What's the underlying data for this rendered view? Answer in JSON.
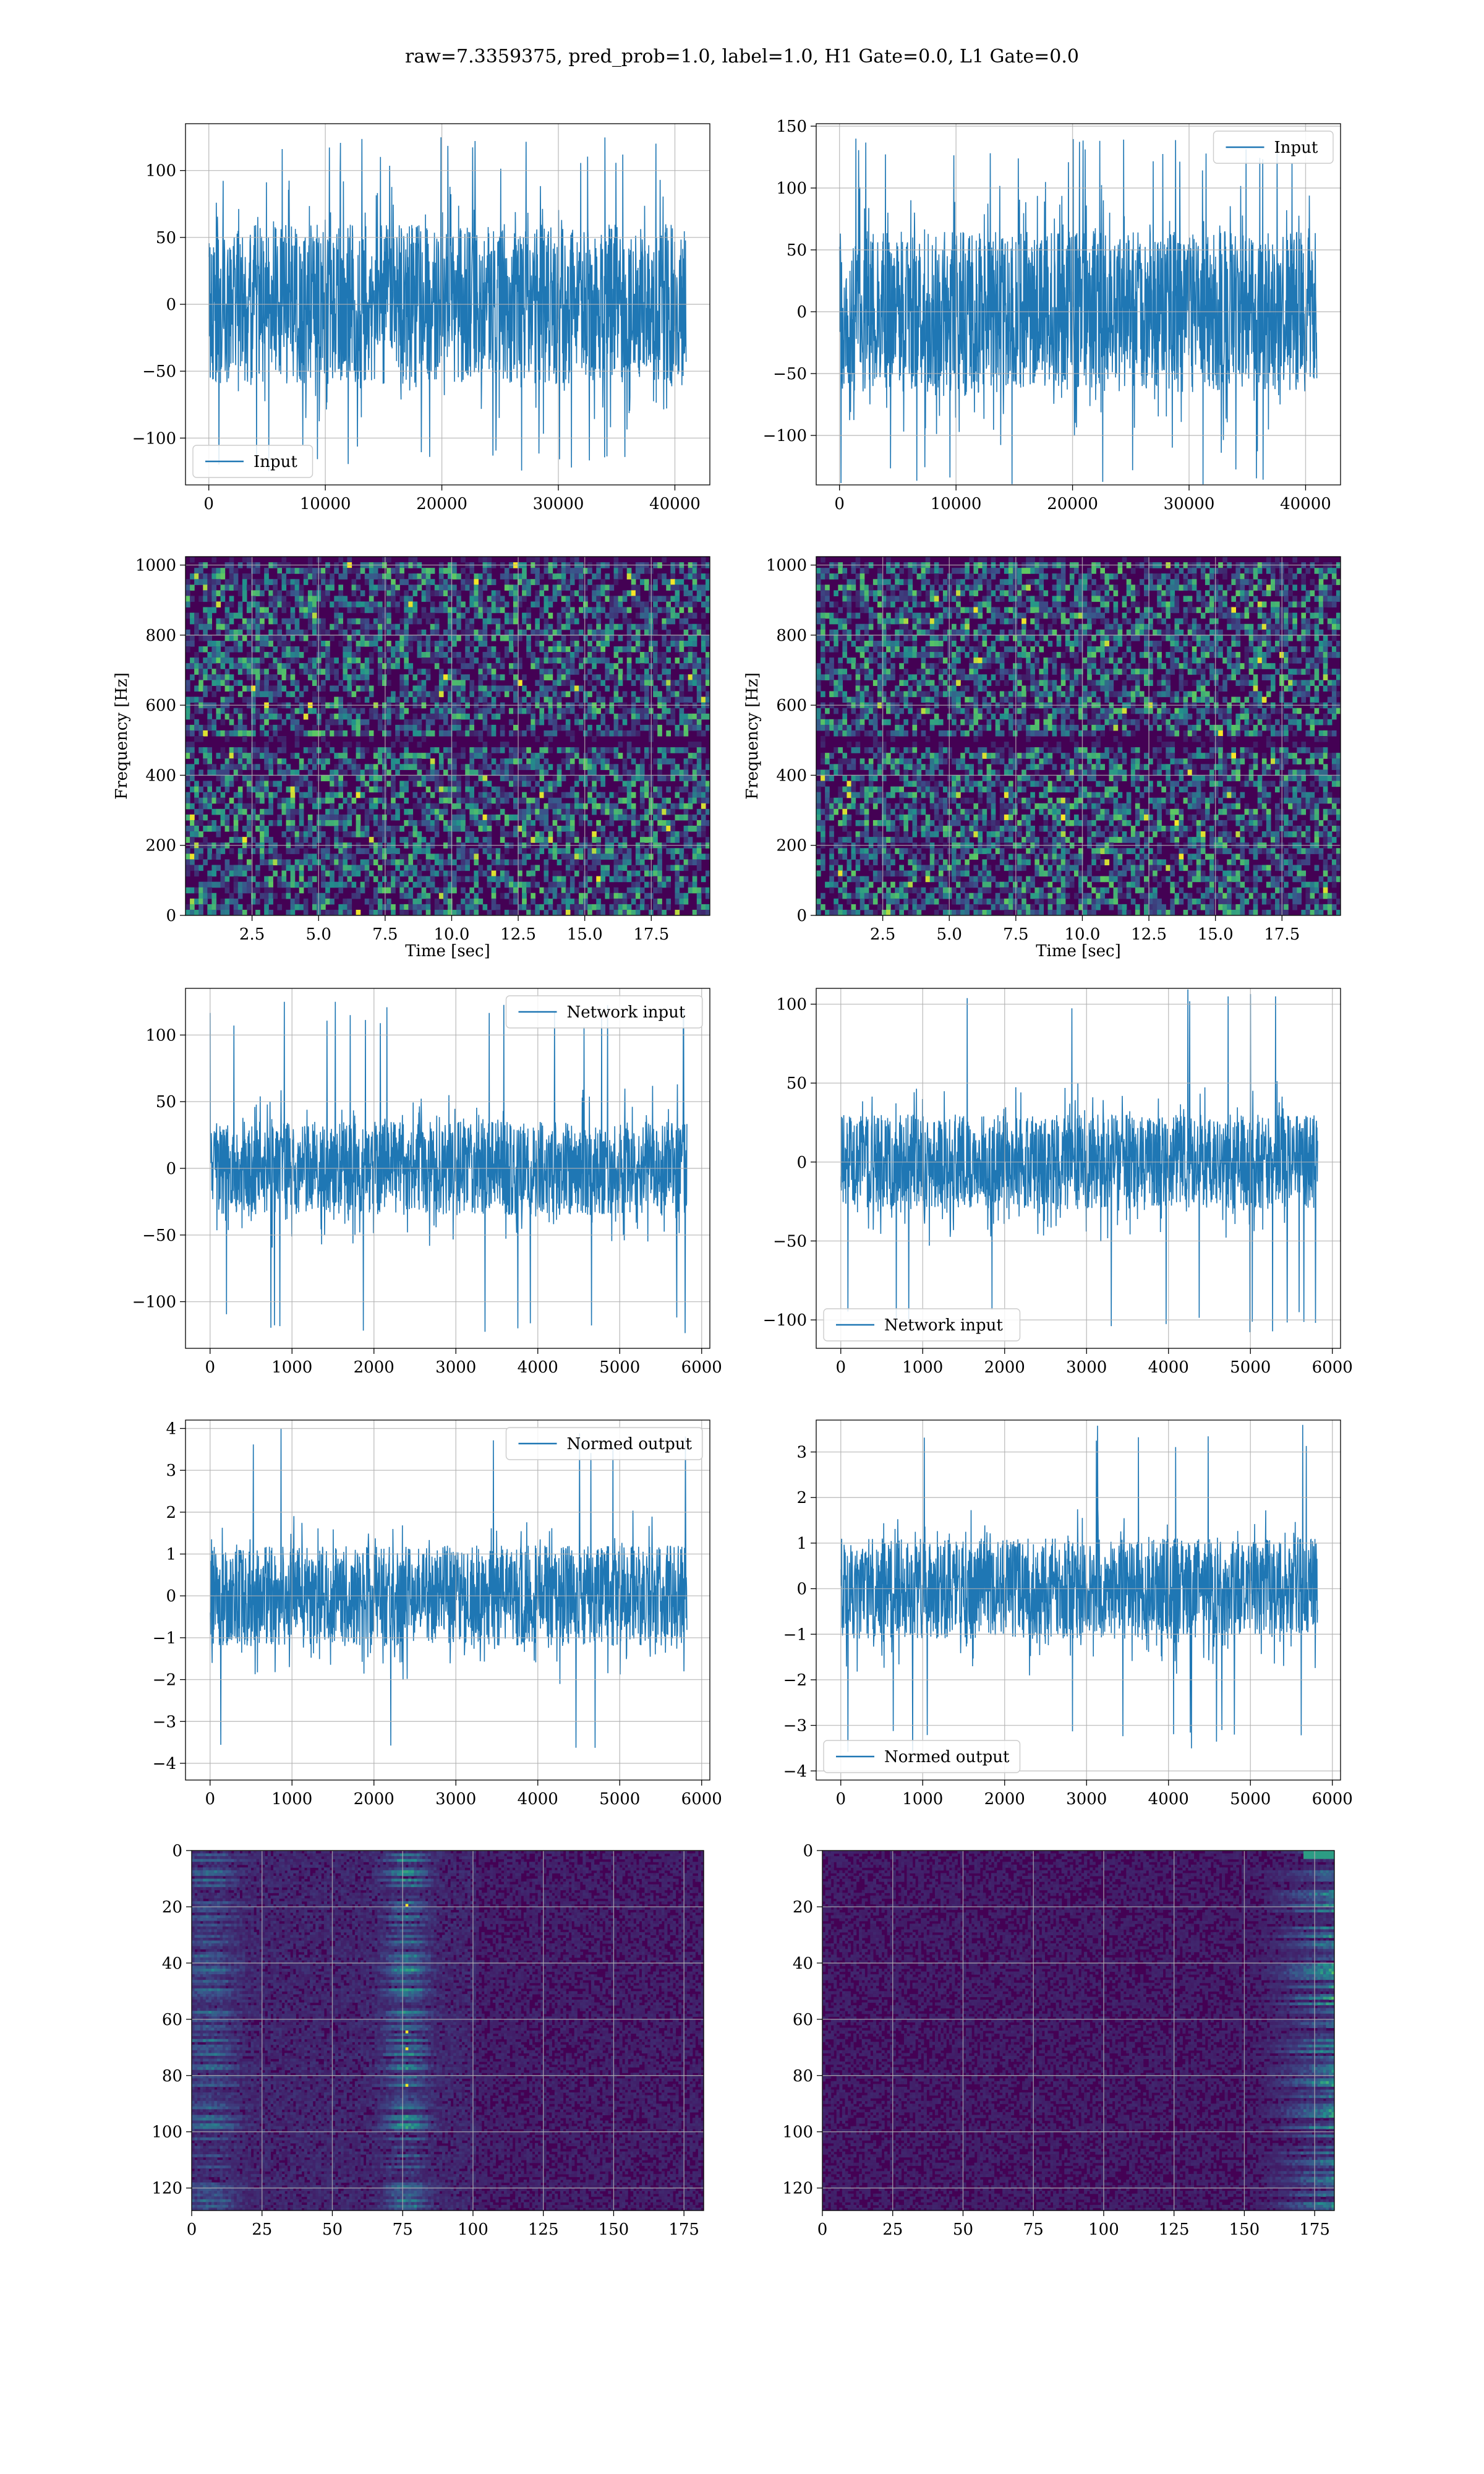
{
  "figure": {
    "suptitle": "raw=7.3359375, pred_prob=1.0, label=1.0, H1 Gate=0.0, L1 Gate=0.0"
  },
  "colors": {
    "series": "#1f77b4",
    "grid": "#b0b0b0",
    "frame": "#000000",
    "cmap": [
      "#440154",
      "#3b528b",
      "#21918c",
      "#5ec962",
      "#fde725"
    ]
  },
  "chart_data": [
    {
      "id": "h1-input",
      "type": "line",
      "legend": "Input",
      "legend_loc": "lower-left",
      "series": [
        {
          "name": "Input",
          "n": 40960,
          "amplitude": "approx ±60 band, peaks ±125"
        }
      ],
      "xlim": [
        -2000,
        43000
      ],
      "ylim": [
        -135,
        135
      ],
      "xticks": [
        0,
        10000,
        20000,
        30000,
        40000
      ],
      "yticks": [
        -100,
        -50,
        0,
        50,
        100
      ],
      "xlabel": "",
      "ylabel": "",
      "grid": true
    },
    {
      "id": "l1-input",
      "type": "line",
      "legend": "Input",
      "legend_loc": "upper-right",
      "series": [
        {
          "name": "Input",
          "n": 40960,
          "amplitude": "approx ±65 band, peaks ±140"
        }
      ],
      "xlim": [
        -2000,
        43000
      ],
      "ylim": [
        -140,
        152
      ],
      "xticks": [
        0,
        10000,
        20000,
        30000,
        40000
      ],
      "yticks": [
        -100,
        -50,
        0,
        50,
        100,
        150
      ],
      "xlabel": "",
      "ylabel": "",
      "grid": true
    },
    {
      "id": "h1-spectrogram",
      "type": "heatmap",
      "xlim": [
        0,
        19.7
      ],
      "ylim": [
        0,
        1024
      ],
      "xticks": [
        2.5,
        5.0,
        7.5,
        10.0,
        12.5,
        15.0,
        17.5
      ],
      "yticks": [
        0,
        200,
        400,
        600,
        800,
        1000
      ],
      "xlabel": "Time [sec]",
      "ylabel": "Frequency [Hz]",
      "grid": true,
      "colormap": "viridis",
      "features": "noise with dark bands near 490-510 Hz and above 1000 Hz"
    },
    {
      "id": "l1-spectrogram",
      "type": "heatmap",
      "xlim": [
        0,
        19.7
      ],
      "ylim": [
        0,
        1024
      ],
      "xticks": [
        2.5,
        5.0,
        7.5,
        10.0,
        12.5,
        15.0,
        17.5
      ],
      "yticks": [
        0,
        200,
        400,
        600,
        800,
        1000
      ],
      "xlabel": "Time [sec]",
      "ylabel": "Frequency [Hz]",
      "grid": true,
      "colormap": "viridis",
      "features": "noise with dark bands near 490-510 Hz and above 1000 Hz"
    },
    {
      "id": "h1-network-input",
      "type": "line",
      "legend": "Network input",
      "legend_loc": "upper-right",
      "series": [
        {
          "name": "Network input",
          "n": 5820,
          "amplitude": "approx ±35 band, peaks ±125"
        }
      ],
      "xlim": [
        -300,
        6100
      ],
      "ylim": [
        -135,
        135
      ],
      "xticks": [
        0,
        1000,
        2000,
        3000,
        4000,
        5000,
        6000
      ],
      "yticks": [
        -100,
        -50,
        0,
        50,
        100
      ],
      "xlabel": "",
      "ylabel": "",
      "grid": true
    },
    {
      "id": "l1-network-input",
      "type": "line",
      "legend": "Network input",
      "legend_loc": "lower-left",
      "series": [
        {
          "name": "Network input",
          "n": 5820,
          "amplitude": "approx ±30 band, peaks ±110"
        }
      ],
      "xlim": [
        -300,
        6100
      ],
      "ylim": [
        -118,
        110
      ],
      "xticks": [
        0,
        1000,
        2000,
        3000,
        4000,
        5000,
        6000
      ],
      "yticks": [
        -100,
        -50,
        0,
        50,
        100
      ],
      "xlabel": "",
      "ylabel": "",
      "grid": true
    },
    {
      "id": "h1-normed-output",
      "type": "line",
      "legend": "Normed output",
      "legend_loc": "upper-right",
      "series": [
        {
          "name": "Normed output",
          "n": 5820,
          "amplitude": "approx ±1.2 band, peaks ±4"
        }
      ],
      "xlim": [
        -300,
        6100
      ],
      "ylim": [
        -4.4,
        4.2
      ],
      "xticks": [
        0,
        1000,
        2000,
        3000,
        4000,
        5000,
        6000
      ],
      "yticks": [
        -4,
        -3,
        -2,
        -1,
        0,
        1,
        2,
        3,
        4
      ],
      "xlabel": "",
      "ylabel": "",
      "grid": true
    },
    {
      "id": "l1-normed-output",
      "type": "line",
      "legend": "Normed output",
      "legend_loc": "lower-left",
      "series": [
        {
          "name": "Normed output",
          "n": 5820,
          "amplitude": "approx ±1.1 band, peaks ±3.6"
        }
      ],
      "xlim": [
        -300,
        6100
      ],
      "ylim": [
        -4.2,
        3.7
      ],
      "xticks": [
        0,
        1000,
        2000,
        3000,
        4000,
        5000,
        6000
      ],
      "yticks": [
        -4,
        -3,
        -2,
        -1,
        0,
        1,
        2,
        3
      ],
      "xlabel": "",
      "ylabel": "",
      "grid": true
    },
    {
      "id": "h1-feature-map",
      "type": "heatmap",
      "xlim": [
        0,
        182
      ],
      "ylim": [
        128,
        0
      ],
      "xticks": [
        0,
        25,
        50,
        75,
        100,
        125,
        150,
        175
      ],
      "yticks": [
        0,
        20,
        40,
        60,
        80,
        100,
        120
      ],
      "xlabel": "",
      "ylabel": "",
      "grid": true,
      "colormap": "viridis",
      "features": "bright streaks concentrated near columns 0-15 and 65-85, hotspots near column 76 at rows 19, 64, 70, 83"
    },
    {
      "id": "l1-feature-map",
      "type": "heatmap",
      "xlim": [
        0,
        182
      ],
      "ylim": [
        128,
        0
      ],
      "xticks": [
        0,
        25,
        50,
        75,
        100,
        125,
        150,
        175
      ],
      "yticks": [
        0,
        20,
        40,
        60,
        80,
        100,
        120
      ],
      "xlabel": "",
      "ylabel": "",
      "grid": true,
      "colormap": "viridis",
      "features": "mostly dark, brighter streaks concentrated near columns 150-182"
    }
  ]
}
